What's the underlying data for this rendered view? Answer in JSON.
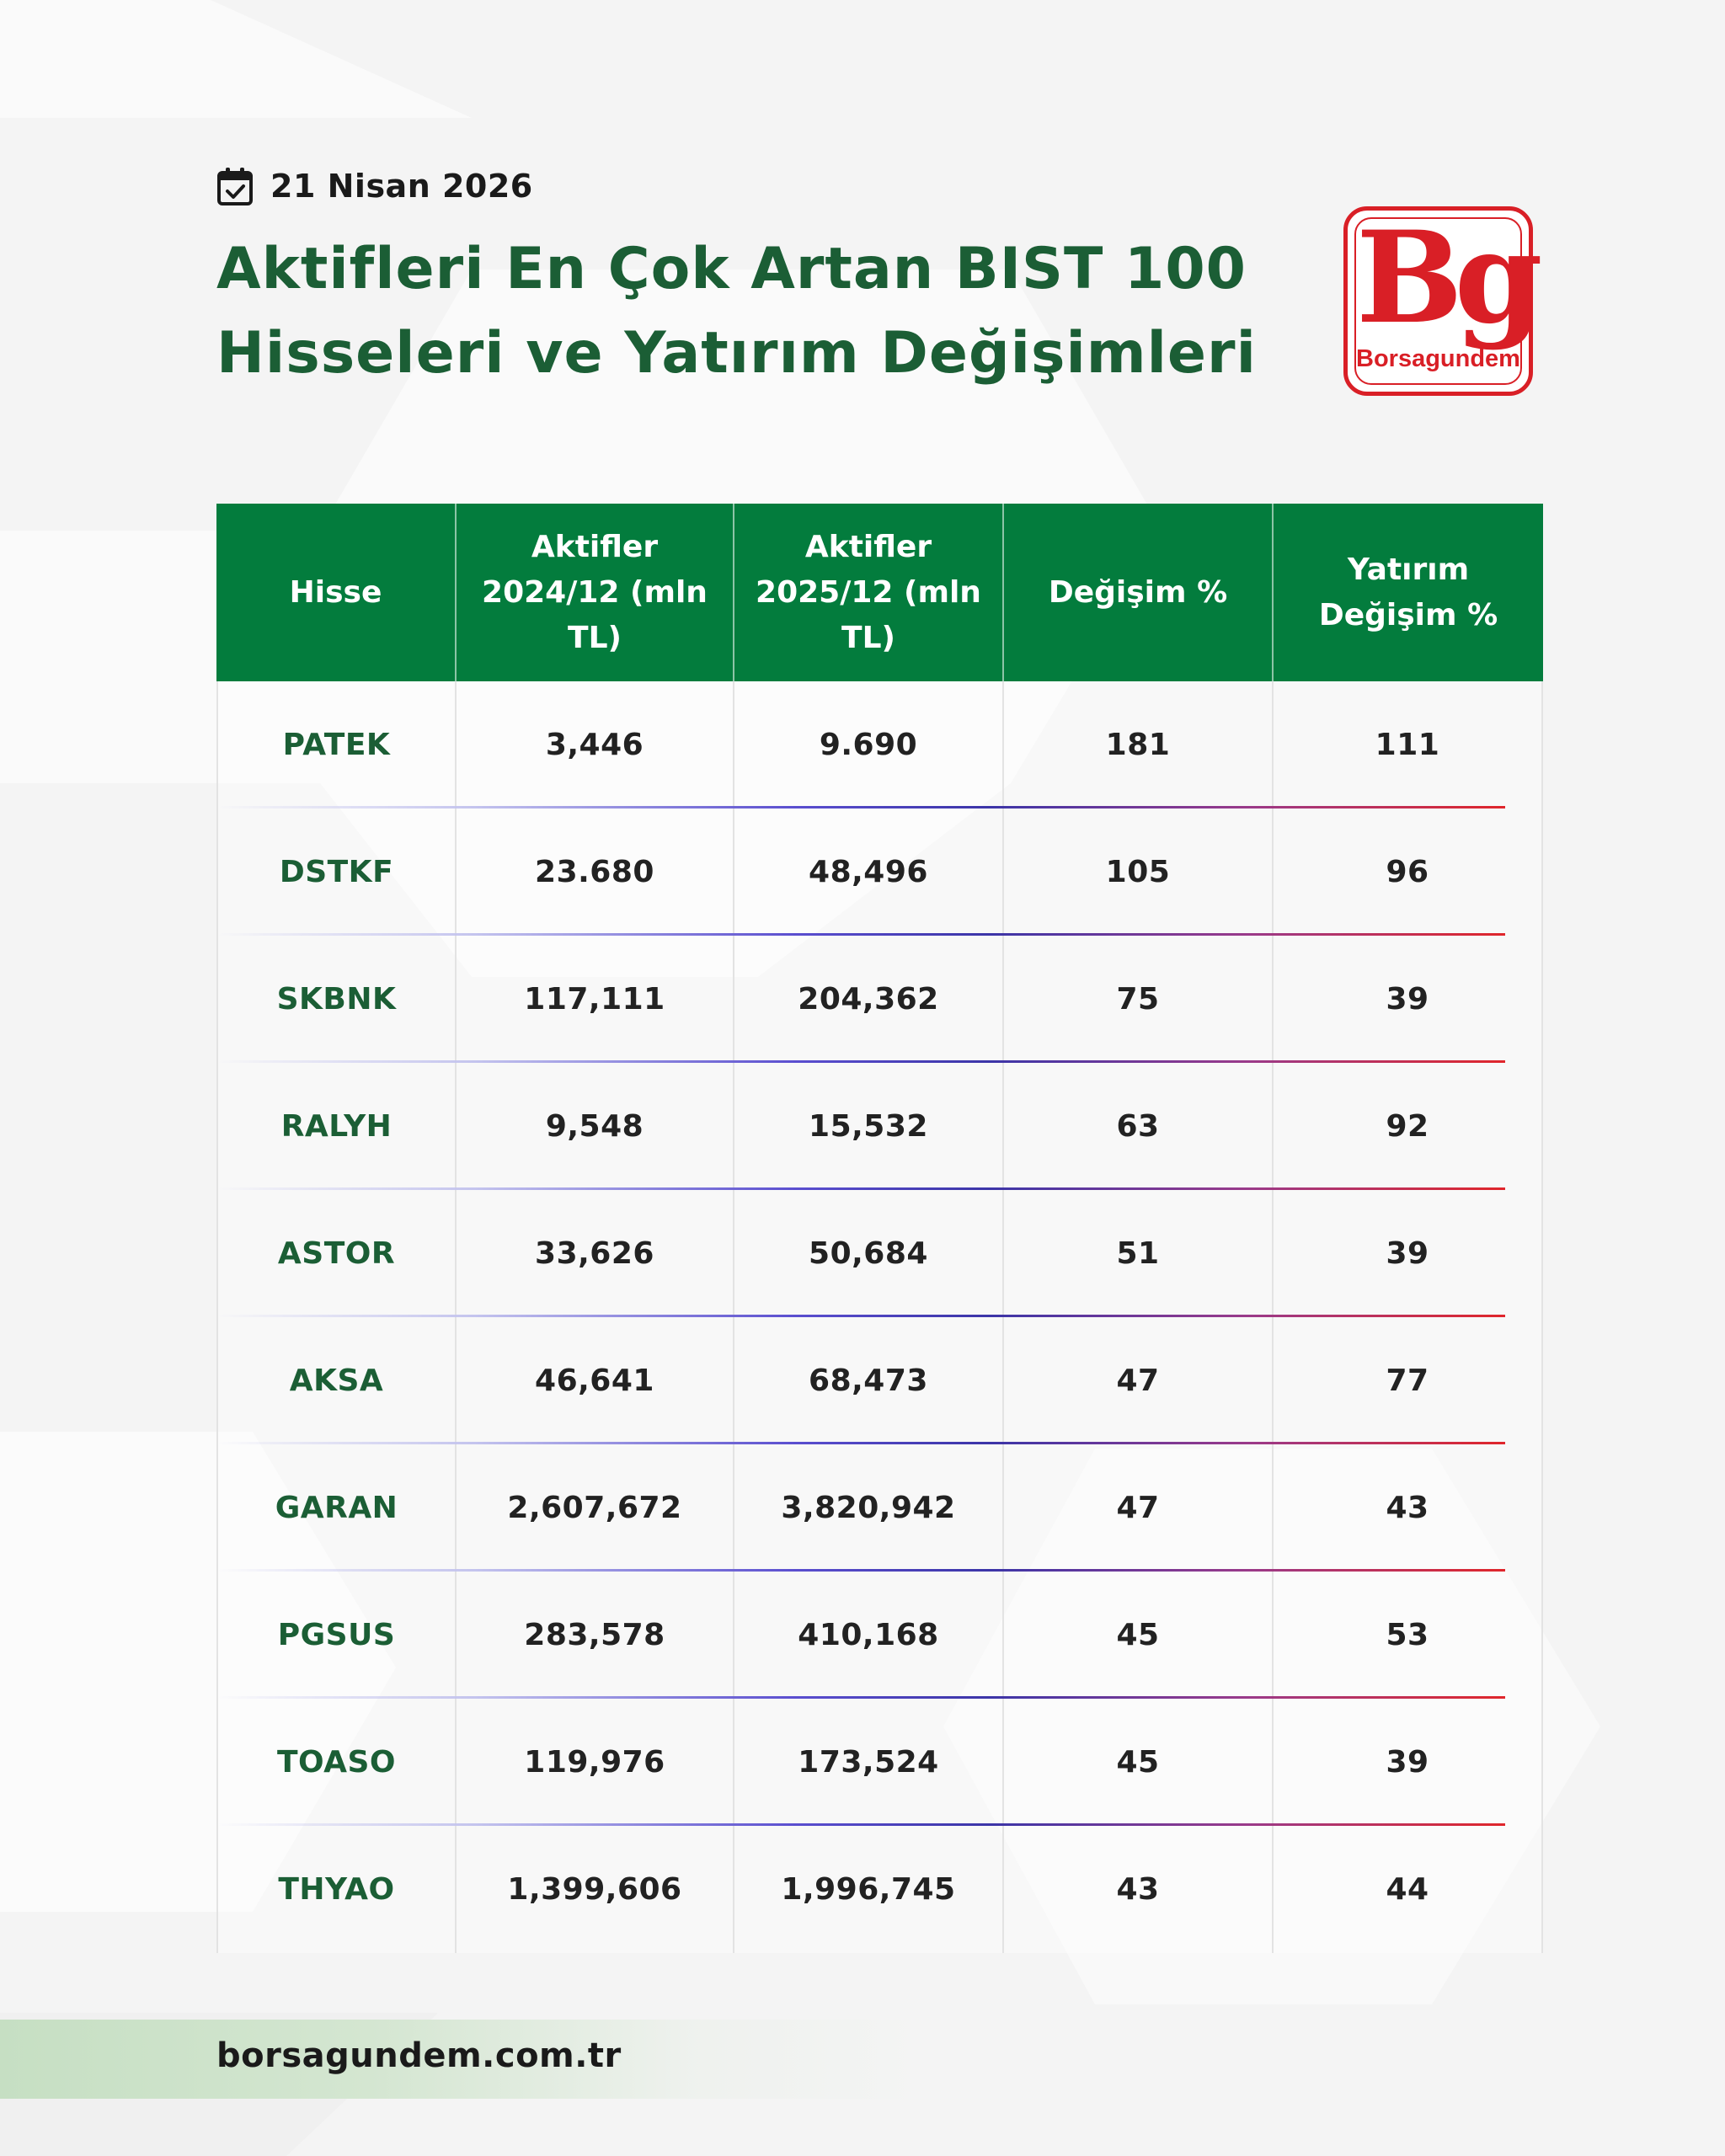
{
  "date": "21 Nisan 2026",
  "title": {
    "line1": "Aktifleri En Çok Artan BIST 100",
    "line2": "Hisseleri ve Yatırım Değişimleri"
  },
  "logo": {
    "mark": "Bg",
    "name": "Borsagundem"
  },
  "table": {
    "headers": [
      "Hisse",
      "Aktifler 2024/12 (mln TL)",
      "Aktifler 2025/12 (mln TL)",
      "Değişim %",
      "Yatırım Değişim %"
    ],
    "rows": [
      [
        "PATEK",
        "3,446",
        "9.690",
        "181",
        "111"
      ],
      [
        "DSTKF",
        "23.680",
        "48,496",
        "105",
        "96"
      ],
      [
        "SKBNK",
        "117,111",
        "204,362",
        "75",
        "39"
      ],
      [
        "RALYH",
        "9,548",
        "15,532",
        "63",
        "92"
      ],
      [
        "ASTOR",
        "33,626",
        "50,684",
        "51",
        "39"
      ],
      [
        "AKSA",
        "46,641",
        "68,473",
        "47",
        "77"
      ],
      [
        "GARAN",
        "2,607,672",
        "3,820,942",
        "47",
        "43"
      ],
      [
        "PGSUS",
        "283,578",
        "410,168",
        "45",
        "53"
      ],
      [
        "TOASO",
        "119,976",
        "173,524",
        "45",
        "39"
      ],
      [
        "THYAO",
        "1,399,606",
        "1,996,745",
        "43",
        "44"
      ]
    ]
  },
  "footer": {
    "url": "borsagundem.com.tr"
  },
  "colors": {
    "header_green": "#037c3d",
    "title_green": "#1b5e35",
    "brand_red": "#d91f26"
  }
}
